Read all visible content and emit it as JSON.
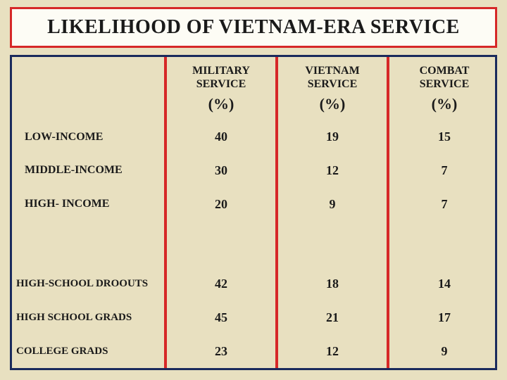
{
  "title": "LIKELIHOOD OF VIETNAM-ERA SERVICE",
  "table": {
    "type": "table",
    "background_color": "#e8e0c0",
    "title_border_color": "#d62828",
    "table_border_color": "#1a2a5c",
    "separator_color": "#d62828",
    "text_color": "#1a1a1a",
    "columns": [
      {
        "header_line1": "MILITARY",
        "header_line2": "SERVICE",
        "unit": "(%)"
      },
      {
        "header_line1": "VIETNAM",
        "header_line2": "SERVICE",
        "unit": "(%)"
      },
      {
        "header_line1": "COMBAT",
        "header_line2": "SERVICE",
        "unit": "(%)"
      }
    ],
    "group1": [
      {
        "label": "LOW-INCOME",
        "values": [
          "40",
          "19",
          "15"
        ]
      },
      {
        "label": "MIDDLE-INCOME",
        "values": [
          "30",
          "12",
          "7"
        ]
      },
      {
        "label": "HIGH- INCOME",
        "values": [
          "20",
          "9",
          "7"
        ]
      }
    ],
    "group2": [
      {
        "label": "HIGH-SCHOOL DROOUTS",
        "values": [
          "42",
          "18",
          "14"
        ]
      },
      {
        "label": "HIGH SCHOOL GRADS",
        "values": [
          "45",
          "21",
          "17"
        ]
      },
      {
        "label": "COLLEGE GRADS",
        "values": [
          "23",
          "12",
          "9"
        ]
      }
    ]
  }
}
